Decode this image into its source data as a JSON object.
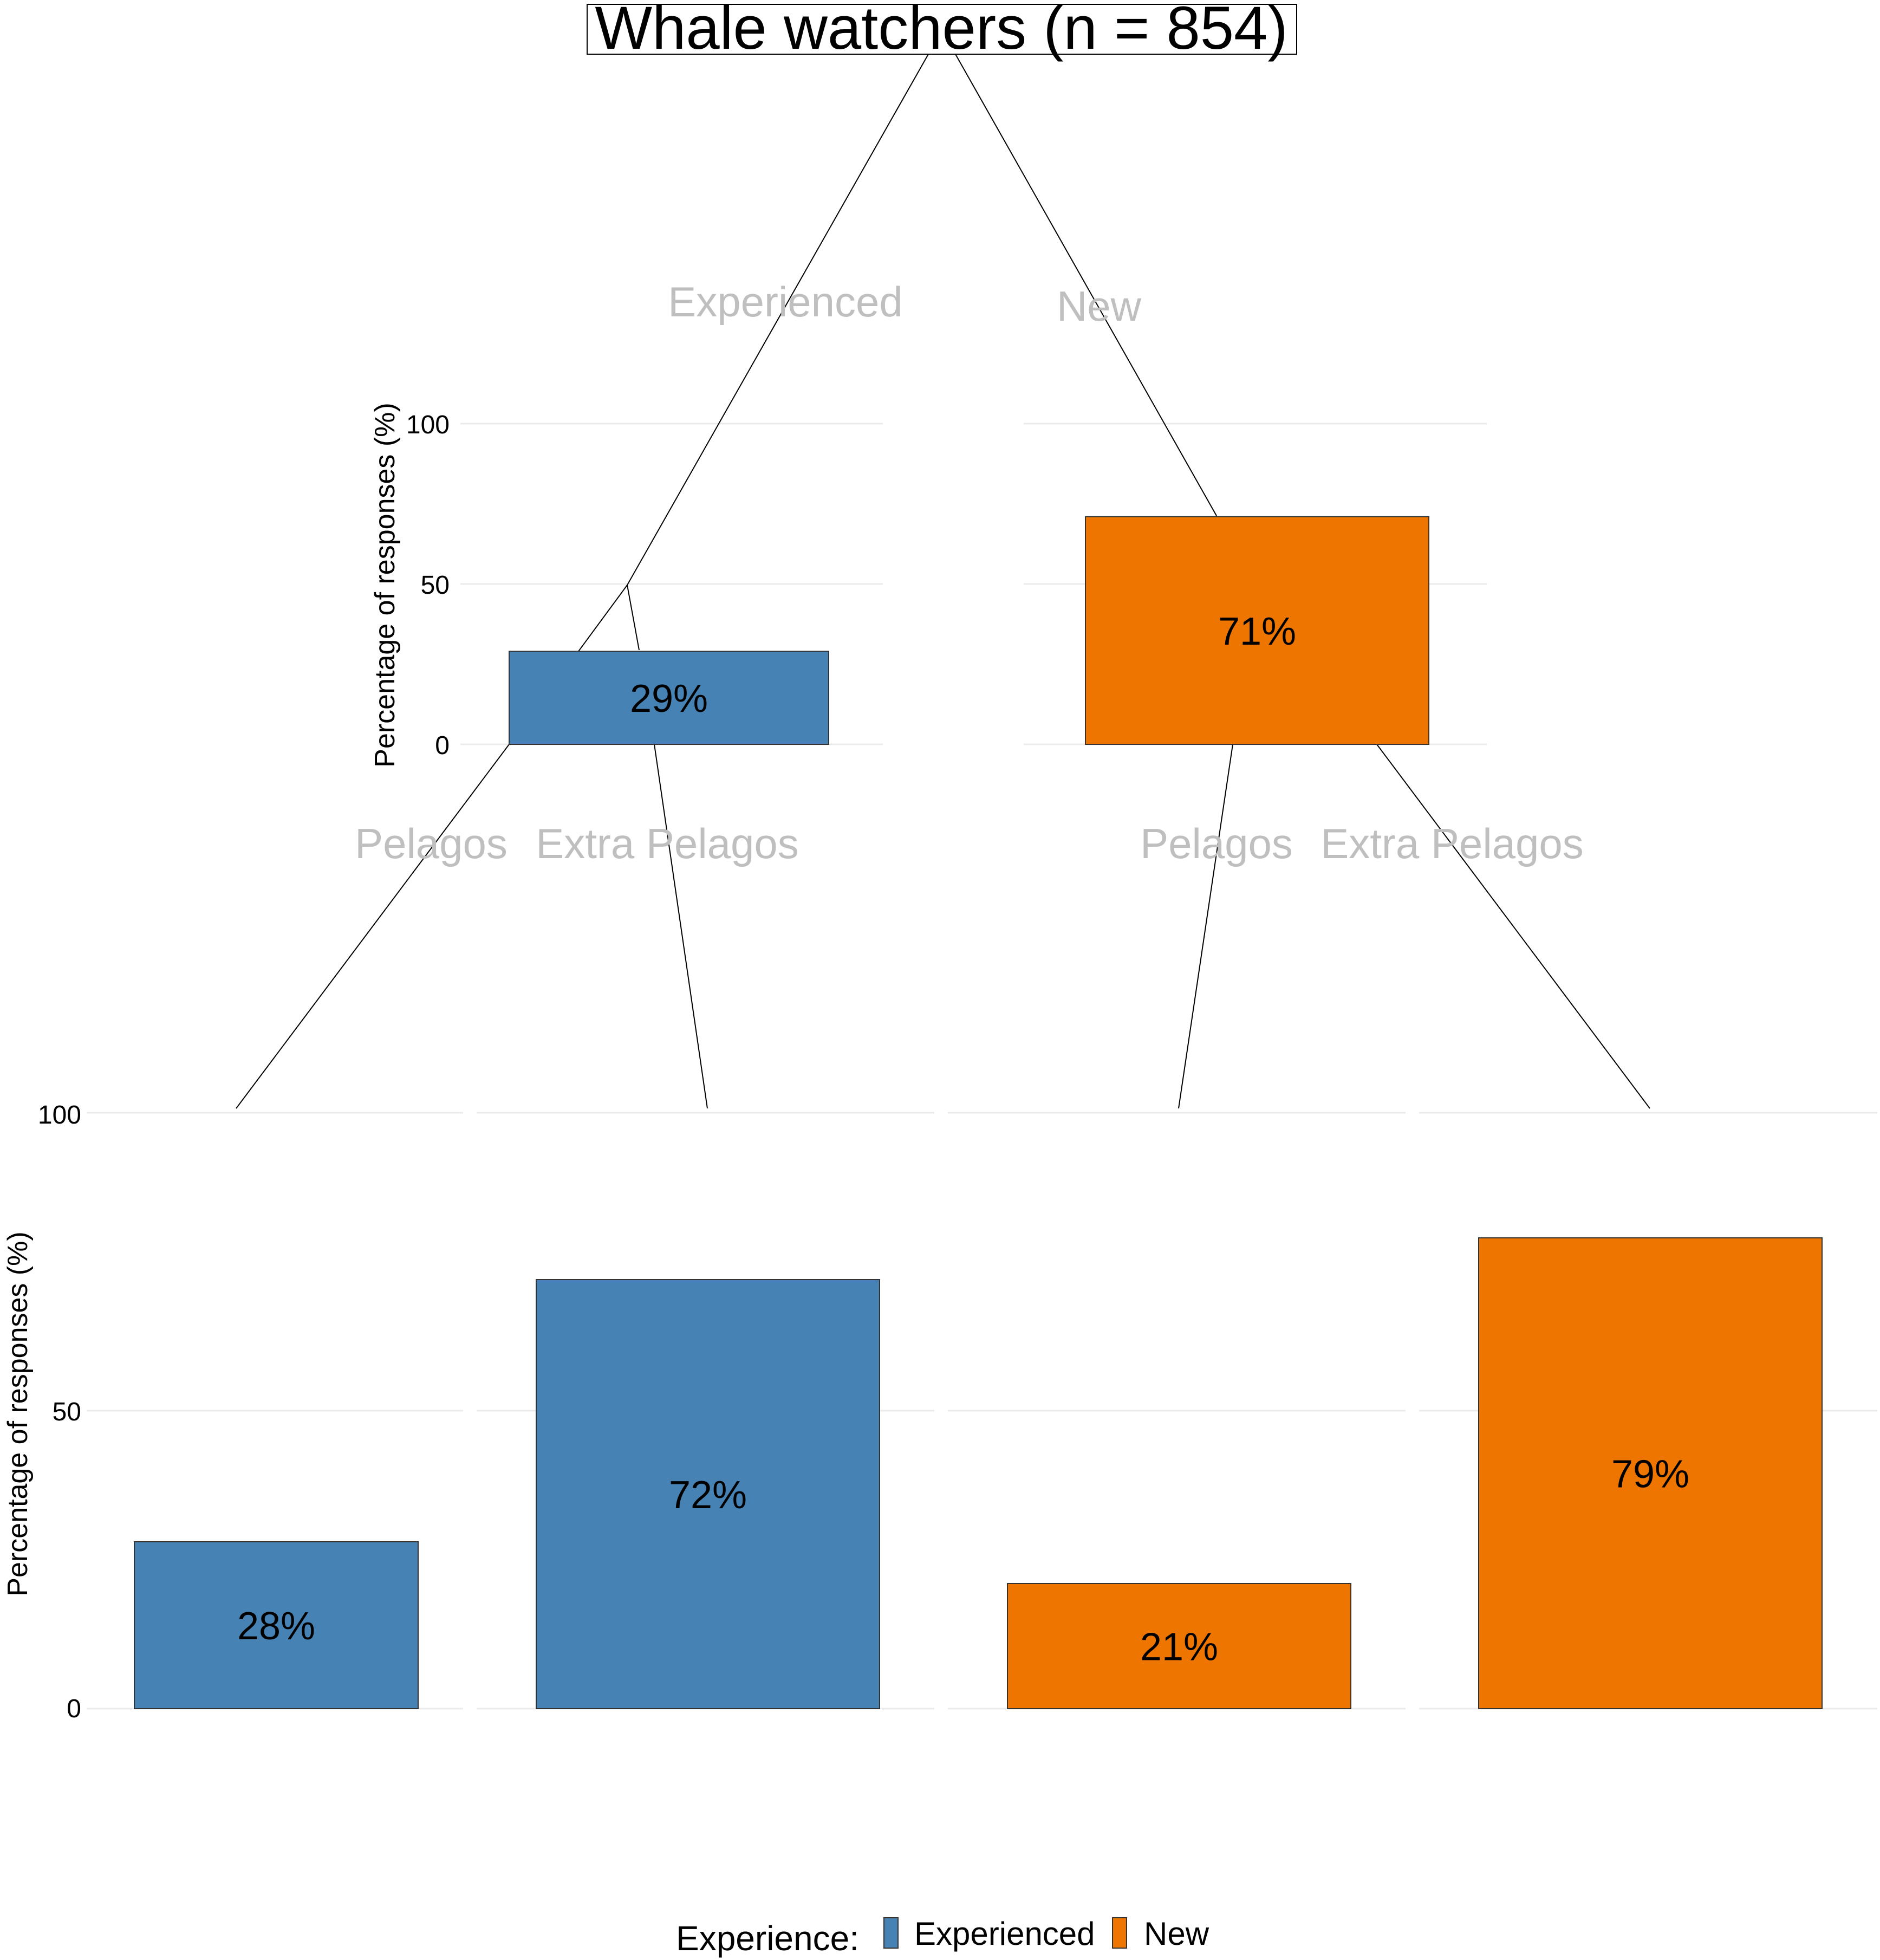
{
  "title": "Whale watchers (n = 854)",
  "chart_data": [
    {
      "type": "bar",
      "panel": "top",
      "categories": [
        "Experienced",
        "New"
      ],
      "values": [
        29,
        71
      ],
      "data_labels": [
        "29%",
        "71%"
      ],
      "colors": [
        "#4682b4",
        "#ee7600"
      ],
      "ylabel": "Percentage of responses (%)",
      "yticks": [
        "0",
        "50",
        "100"
      ],
      "ylim": [
        0,
        100
      ],
      "grid": true
    },
    {
      "type": "bar",
      "panel": "bottom",
      "groups": [
        {
          "experience": "Experienced",
          "categories": [
            "Pelagos",
            "Extra Pelagos"
          ],
          "values": [
            28,
            72
          ],
          "data_labels": [
            "28%",
            "72%"
          ],
          "color": "#4682b4"
        },
        {
          "experience": "New",
          "categories": [
            "Pelagos",
            "Extra Pelagos"
          ],
          "values": [
            21,
            79
          ],
          "data_labels": [
            "21%",
            "79%"
          ],
          "color": "#ee7600"
        }
      ],
      "ylabel": "Percentage of responses (%)",
      "yticks": [
        "0",
        "50",
        "100"
      ],
      "ylim": [
        0,
        100
      ],
      "grid": true
    }
  ],
  "legend": {
    "title": "Experience:",
    "position": "bottom",
    "items": [
      {
        "label": "Experienced",
        "color": "#4682b4"
      },
      {
        "label": "New",
        "color": "#ee7600"
      }
    ]
  }
}
